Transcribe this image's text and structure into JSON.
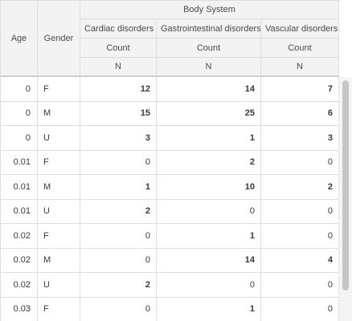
{
  "table": {
    "header": {
      "age": "Age",
      "gender": "Gender",
      "group": "Body System",
      "categories": [
        "Cardiac disorders",
        "Gastrointestinal disorders",
        "Vascular disorders"
      ],
      "measure": "Count",
      "stat": "N"
    },
    "rows": [
      {
        "age": "0",
        "gender": "F",
        "values": [
          "12",
          "14",
          "7"
        ]
      },
      {
        "age": "0",
        "gender": "M",
        "values": [
          "15",
          "25",
          "6"
        ]
      },
      {
        "age": "0",
        "gender": "U",
        "values": [
          "3",
          "1",
          "3"
        ]
      },
      {
        "age": "0.01",
        "gender": "F",
        "values": [
          "0",
          "2",
          "0"
        ]
      },
      {
        "age": "0.01",
        "gender": "M",
        "values": [
          "1",
          "10",
          "2"
        ]
      },
      {
        "age": "0.01",
        "gender": "U",
        "values": [
          "2",
          "0",
          "0"
        ]
      },
      {
        "age": "0.02",
        "gender": "F",
        "values": [
          "0",
          "1",
          "0"
        ]
      },
      {
        "age": "0.02",
        "gender": "M",
        "values": [
          "0",
          "14",
          "4"
        ]
      },
      {
        "age": "0.02",
        "gender": "U",
        "values": [
          "2",
          "0",
          "0"
        ]
      },
      {
        "age": "0.03",
        "gender": "F",
        "values": [
          "0",
          "1",
          "0"
        ]
      }
    ]
  }
}
